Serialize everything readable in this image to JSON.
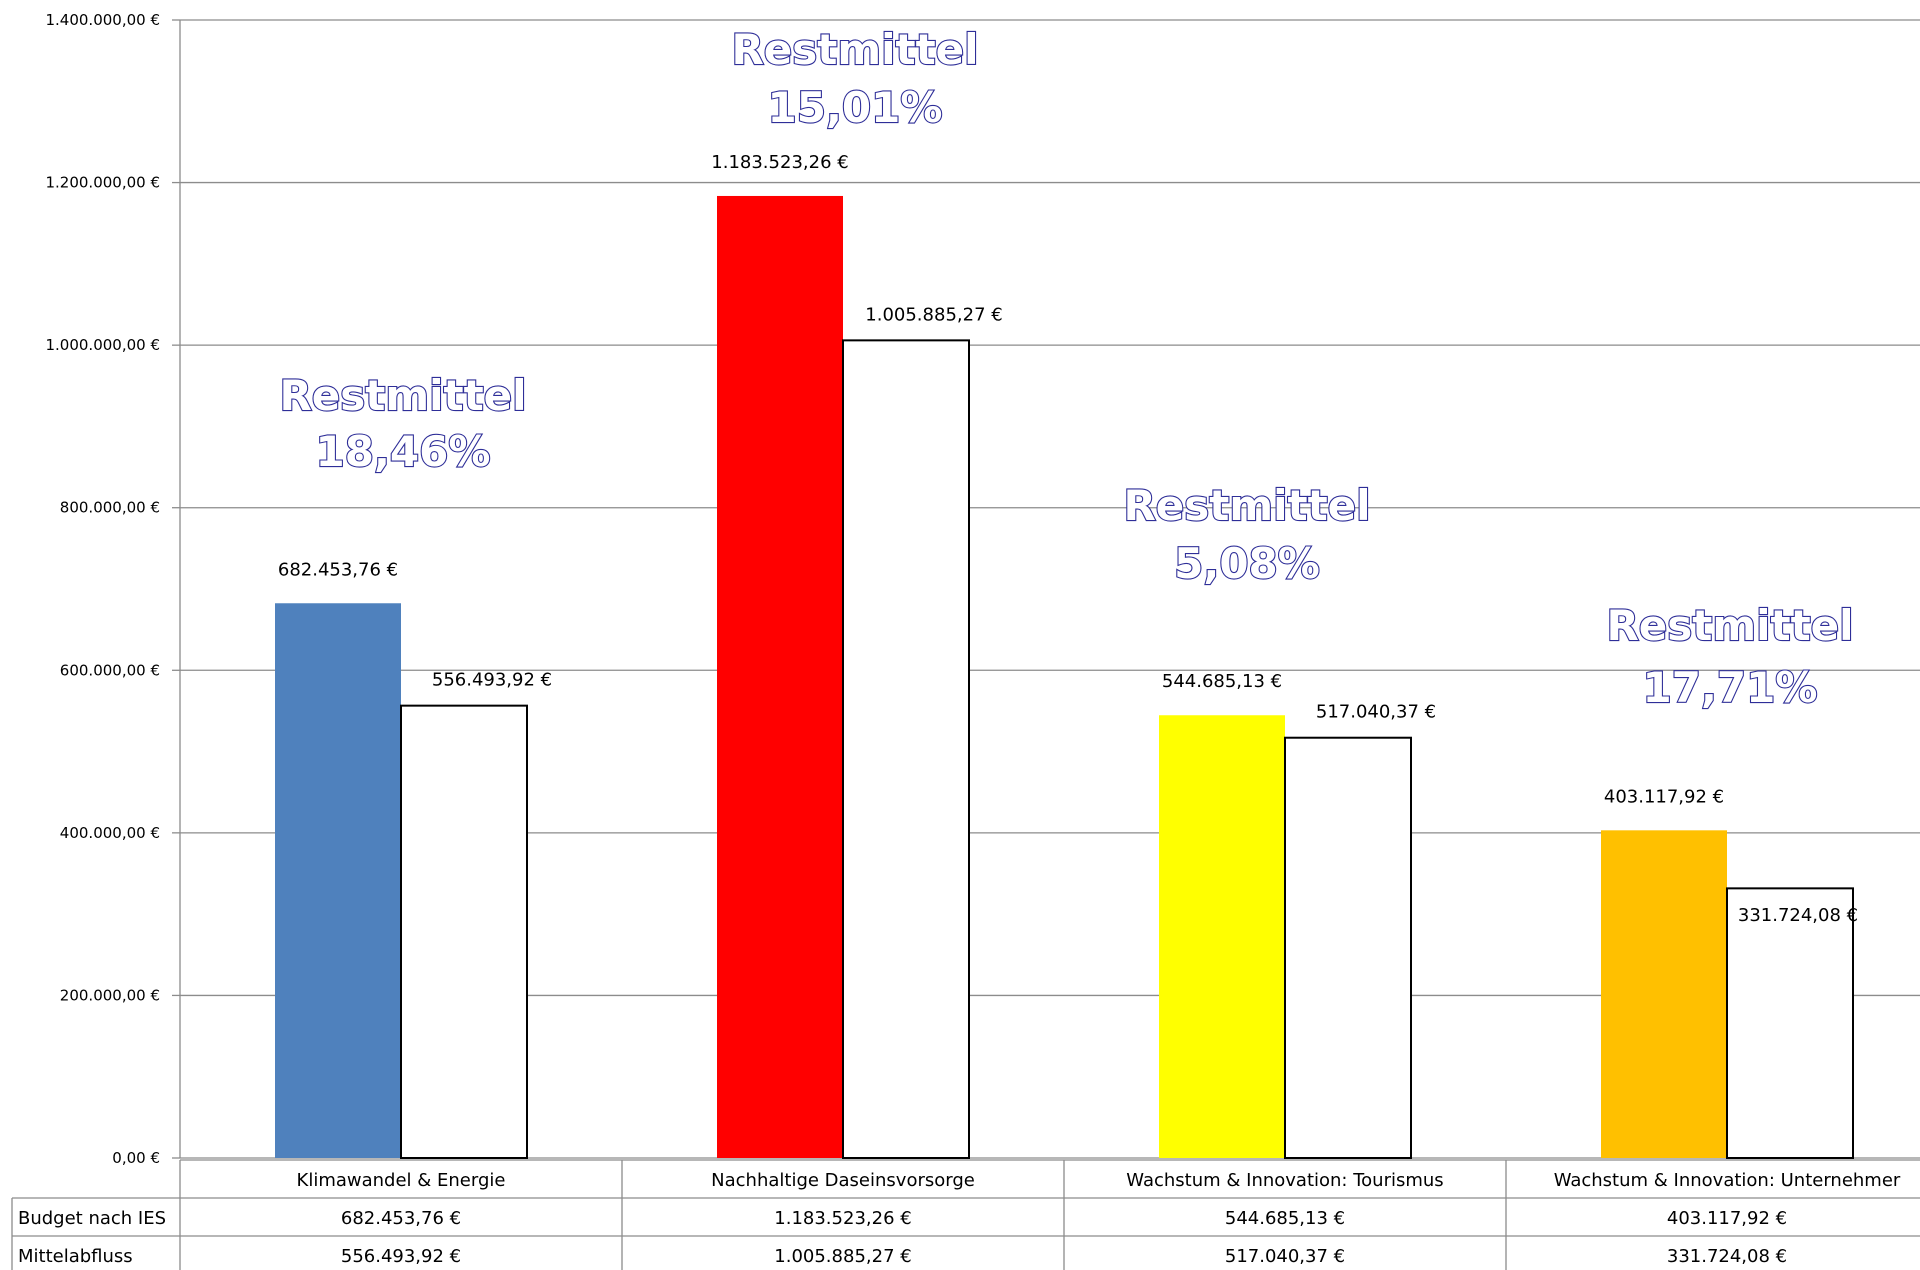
{
  "chart_data": {
    "type": "bar",
    "title": "",
    "xlabel": "",
    "ylabel": "",
    "ylim": [
      0,
      1400000
    ],
    "y_ticks": [
      0,
      200000,
      400000,
      600000,
      800000,
      1000000,
      1200000,
      1400000
    ],
    "y_tick_labels": [
      "0,00 €",
      "200.000,00 €",
      "400.000,00 €",
      "600.000,00 €",
      "800.000,00 €",
      "1.000.000,00 €",
      "1.200.000,00 €",
      "1.400.000,00 €"
    ],
    "grid": true,
    "legend": "data table below plot",
    "categories": [
      "Klimawandel & Energie",
      "Nachhaltige Daseinsvorsorge",
      "Wachstum & Innovation: Tourismus",
      "Wachstum & Innovation: Unternehmer"
    ],
    "series": [
      {
        "name": "Budget nach IES",
        "values": [
          682453.76,
          1183523.26,
          544685.13,
          403117.92
        ],
        "labels": [
          "682.453,76 €",
          "1.183.523,26 €",
          "544.685,13 €",
          "403.117,92 €"
        ],
        "colors": [
          "#4f81bd",
          "#ff0000",
          "#ffff00",
          "#ffc000"
        ]
      },
      {
        "name": "Mittelabfluss",
        "values": [
          556493.92,
          1005885.27,
          517040.37,
          331724.08
        ],
        "labels": [
          "556.493,92 €",
          "1.005.885,27 €",
          "517.040,37 €",
          "331.724,08 €"
        ],
        "colors": [
          "#ffffff",
          "#ffffff",
          "#ffffff",
          "#ffffff"
        ]
      }
    ],
    "annotations": [
      {
        "title": "Restmittel",
        "value": "18,46%"
      },
      {
        "title": "Restmittel",
        "value": "15,01%"
      },
      {
        "title": "Restmittel",
        "value": "5,08%"
      },
      {
        "title": "Restmittel",
        "value": "17,71%"
      }
    ]
  }
}
